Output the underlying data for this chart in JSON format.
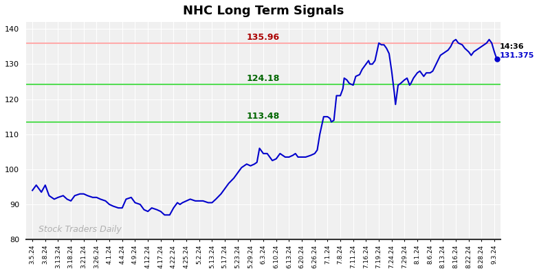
{
  "title": "NHC Long Term Signals",
  "watermark": "Stock Traders Daily",
  "ylim": [
    80,
    142
  ],
  "yticks": [
    80,
    90,
    100,
    110,
    120,
    130,
    140
  ],
  "red_line": 135.96,
  "green_line1": 124.18,
  "green_line2": 113.48,
  "last_price": 131.375,
  "last_time": "14:36",
  "line_color": "#0000cc",
  "red_line_color": "#ffaaaa",
  "green_line_color": "#55dd55",
  "annotation_red_color": "#aa0000",
  "annotation_green_color": "#006600",
  "last_time_color": "#000000",
  "last_price_color": "#0000cc",
  "x_labels": [
    "3.5.24",
    "3.8.24",
    "3.13.24",
    "3.18.24",
    "3.21.24",
    "3.26.24",
    "4.1.24",
    "4.4.24",
    "4.9.24",
    "4.12.24",
    "4.17.24",
    "4.22.24",
    "4.25.24",
    "5.2.24",
    "5.13.24",
    "5.17.24",
    "5.23.24",
    "5.29.24",
    "6.3.24",
    "6.10.24",
    "6.13.24",
    "6.20.24",
    "6.26.24",
    "7.1.24",
    "7.8.24",
    "7.11.24",
    "7.16.24",
    "7.19.24",
    "7.24.24",
    "7.29.24",
    "8.1.24",
    "8.6.24",
    "8.13.24",
    "8.16.24",
    "8.22.24",
    "8.28.24",
    "9.3.24"
  ],
  "key_points": [
    [
      0,
      94.0
    ],
    [
      0.3,
      95.5
    ],
    [
      0.7,
      93.5
    ],
    [
      1.0,
      95.5
    ],
    [
      1.3,
      92.5
    ],
    [
      1.7,
      91.5
    ],
    [
      2.0,
      92.0
    ],
    [
      2.4,
      92.5
    ],
    [
      2.7,
      91.5
    ],
    [
      3.0,
      91.0
    ],
    [
      3.3,
      92.5
    ],
    [
      3.7,
      93.0
    ],
    [
      4.0,
      93.0
    ],
    [
      4.3,
      92.5
    ],
    [
      4.7,
      92.0
    ],
    [
      5.0,
      92.0
    ],
    [
      5.3,
      91.5
    ],
    [
      5.7,
      91.0
    ],
    [
      6.0,
      90.0
    ],
    [
      6.3,
      89.5
    ],
    [
      6.7,
      89.0
    ],
    [
      7.0,
      89.0
    ],
    [
      7.3,
      91.5
    ],
    [
      7.7,
      92.0
    ],
    [
      8.0,
      90.5
    ],
    [
      8.4,
      90.0
    ],
    [
      8.7,
      88.5
    ],
    [
      9.0,
      88.0
    ],
    [
      9.3,
      89.0
    ],
    [
      9.7,
      88.5
    ],
    [
      10.0,
      88.0
    ],
    [
      10.3,
      87.0
    ],
    [
      10.7,
      87.0
    ],
    [
      11.0,
      89.0
    ],
    [
      11.3,
      90.5
    ],
    [
      11.5,
      90.0
    ],
    [
      11.7,
      90.5
    ],
    [
      12.0,
      91.0
    ],
    [
      12.3,
      91.5
    ],
    [
      12.7,
      91.0
    ],
    [
      13.0,
      91.0
    ],
    [
      13.3,
      91.0
    ],
    [
      13.7,
      90.5
    ],
    [
      14.0,
      90.5
    ],
    [
      14.3,
      91.5
    ],
    [
      14.7,
      93.0
    ],
    [
      15.0,
      94.5
    ],
    [
      15.3,
      96.0
    ],
    [
      15.7,
      97.5
    ],
    [
      16.0,
      99.0
    ],
    [
      16.3,
      100.5
    ],
    [
      16.7,
      101.5
    ],
    [
      17.0,
      101.0
    ],
    [
      17.3,
      101.5
    ],
    [
      17.5,
      102.0
    ],
    [
      17.7,
      106.0
    ],
    [
      18.0,
      104.5
    ],
    [
      18.3,
      104.5
    ],
    [
      18.5,
      103.5
    ],
    [
      18.7,
      102.5
    ],
    [
      19.0,
      103.0
    ],
    [
      19.3,
      104.5
    ],
    [
      19.5,
      104.0
    ],
    [
      19.7,
      103.5
    ],
    [
      20.0,
      103.5
    ],
    [
      20.3,
      104.0
    ],
    [
      20.5,
      104.5
    ],
    [
      20.7,
      103.5
    ],
    [
      21.0,
      103.5
    ],
    [
      21.3,
      103.5
    ],
    [
      21.7,
      104.0
    ],
    [
      22.0,
      104.5
    ],
    [
      22.2,
      105.5
    ],
    [
      22.4,
      110.0
    ],
    [
      22.7,
      115.0
    ],
    [
      23.0,
      115.0
    ],
    [
      23.2,
      114.5
    ],
    [
      23.3,
      113.5
    ],
    [
      23.5,
      114.0
    ],
    [
      23.7,
      121.0
    ],
    [
      24.0,
      121.0
    ],
    [
      24.2,
      123.0
    ],
    [
      24.3,
      126.0
    ],
    [
      24.5,
      125.5
    ],
    [
      24.7,
      124.5
    ],
    [
      25.0,
      124.0
    ],
    [
      25.2,
      126.5
    ],
    [
      25.5,
      127.0
    ],
    [
      25.7,
      128.5
    ],
    [
      26.0,
      130.0
    ],
    [
      26.2,
      131.0
    ],
    [
      26.3,
      130.0
    ],
    [
      26.5,
      130.0
    ],
    [
      26.7,
      131.0
    ],
    [
      27.0,
      136.0
    ],
    [
      27.2,
      135.5
    ],
    [
      27.4,
      135.5
    ],
    [
      27.6,
      134.5
    ],
    [
      27.8,
      133.0
    ],
    [
      28.0,
      128.0
    ],
    [
      28.2,
      122.0
    ],
    [
      28.3,
      118.5
    ],
    [
      28.5,
      124.0
    ],
    [
      28.7,
      124.5
    ],
    [
      29.0,
      125.5
    ],
    [
      29.2,
      126.0
    ],
    [
      29.4,
      124.0
    ],
    [
      29.5,
      124.5
    ],
    [
      29.7,
      126.0
    ],
    [
      30.0,
      127.5
    ],
    [
      30.2,
      128.0
    ],
    [
      30.5,
      126.5
    ],
    [
      30.7,
      127.5
    ],
    [
      31.0,
      127.5
    ],
    [
      31.2,
      128.0
    ],
    [
      31.4,
      129.5
    ],
    [
      31.6,
      131.0
    ],
    [
      31.8,
      132.5
    ],
    [
      32.0,
      133.0
    ],
    [
      32.2,
      133.5
    ],
    [
      32.4,
      134.0
    ],
    [
      32.6,
      135.0
    ],
    [
      32.8,
      136.5
    ],
    [
      33.0,
      137.0
    ],
    [
      33.2,
      136.0
    ],
    [
      33.5,
      135.5
    ],
    [
      33.7,
      134.5
    ],
    [
      34.0,
      133.5
    ],
    [
      34.2,
      132.5
    ],
    [
      34.4,
      133.5
    ],
    [
      34.6,
      134.0
    ],
    [
      34.8,
      134.5
    ],
    [
      35.0,
      135.0
    ],
    [
      35.2,
      135.5
    ],
    [
      35.4,
      136.0
    ],
    [
      35.6,
      137.0
    ],
    [
      35.8,
      136.0
    ],
    [
      36.0,
      133.5
    ],
    [
      36.2,
      131.375
    ]
  ]
}
